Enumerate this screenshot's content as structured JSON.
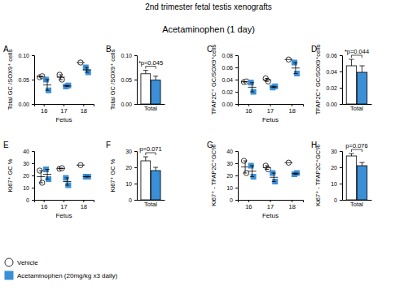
{
  "figure": {
    "title": "2nd trimester fetal testis xenografts",
    "subtitle": "Acetaminophen (1 day)"
  },
  "chart_data": [
    {
      "type": "scatter",
      "title": "A",
      "x_label": "Fetus",
      "y_label": "Total GC /SOX9⁺ cells",
      "categories": [
        "16",
        "17",
        "18"
      ],
      "ylim": [
        0,
        0.1
      ],
      "yticks": [
        {
          "value": 0,
          "label": "0.00"
        },
        {
          "value": 0.05,
          "label": "0.05"
        },
        {
          "value": 0.1,
          "label": "0.10"
        }
      ],
      "series": [
        {
          "name": "Vehicle",
          "color": "#ffffff",
          "marker": "circle",
          "values": [
            [
              0.055,
              0.057
            ],
            [
              0.06,
              0.05
            ],
            [
              0.085
            ]
          ],
          "mean": [
            0.056,
            0.055,
            0.085
          ],
          "error": [
            0.001,
            0.005,
            null
          ]
        },
        {
          "name": "Acetaminophen (20mg/kg x3 daily)",
          "color": "#3b8fd6",
          "marker": "square",
          "values": [
            [
              0.05,
              0.028
            ],
            [
              0.036,
              0.038
            ],
            [
              0.075,
              0.065
            ]
          ],
          "mean": [
            0.039,
            0.037,
            0.07
          ],
          "error": [
            0.011,
            0.001,
            0.005
          ]
        }
      ]
    },
    {
      "type": "bar",
      "title": "B",
      "y_label": "Total GC /SOX9⁺ cells",
      "categories": [
        "Total"
      ],
      "annotation": "*p=0.045",
      "ylim": [
        0,
        0.1
      ],
      "yticks": [
        {
          "value": 0,
          "label": "0.00"
        },
        {
          "value": 0.05,
          "label": "0.05"
        },
        {
          "value": 0.1,
          "label": "0.10"
        }
      ],
      "series": [
        {
          "color": "#ffffff",
          "values": [
            0.062
          ],
          "error": [
            0.007
          ]
        },
        {
          "color": "#3b8fd6",
          "values": [
            0.049
          ],
          "error": [
            0.008
          ]
        }
      ]
    },
    {
      "type": "scatter",
      "title": "C",
      "x_label": "Fetus",
      "y_label": "TFAP2C⁺ GC/SOX9⁺cells",
      "categories": [
        "16",
        "17",
        "18"
      ],
      "ylim": [
        0,
        0.08
      ],
      "yticks": [
        {
          "value": 0,
          "label": "0.00"
        },
        {
          "value": 0.02,
          "label": "0.02"
        },
        {
          "value": 0.04,
          "label": "0.04"
        },
        {
          "value": 0.06,
          "label": "0.06"
        },
        {
          "value": 0.08,
          "label": "0.08"
        }
      ],
      "series": [
        {
          "color": "#ffffff",
          "marker": "circle",
          "values": [
            [
              0.036,
              0.037
            ],
            [
              0.042,
              0.037
            ],
            [
              0.073
            ]
          ],
          "mean": [
            0.0365,
            0.0395,
            0.073
          ],
          "error": [
            0.0005,
            0.0025,
            null
          ]
        },
        {
          "color": "#3b8fd6",
          "marker": "square",
          "values": [
            [
              0.035,
              0.02
            ],
            [
              0.027,
              0.029
            ],
            [
              0.068,
              0.05
            ]
          ],
          "mean": [
            0.0275,
            0.028,
            0.059
          ],
          "error": [
            0.0075,
            0.001,
            0.009
          ]
        }
      ]
    },
    {
      "type": "bar",
      "title": "D",
      "y_label": "TFAP2C⁺ GC/SOX9⁺cells",
      "categories": [
        "Total"
      ],
      "annotation": "*p=0.044",
      "ylim": [
        0,
        0.06
      ],
      "yticks": [
        {
          "value": 0,
          "label": "0.00"
        },
        {
          "value": 0.02,
          "label": "0.02"
        },
        {
          "value": 0.04,
          "label": "0.04"
        },
        {
          "value": 0.06,
          "label": "0.06"
        }
      ],
      "series": [
        {
          "color": "#ffffff",
          "values": [
            0.047
          ],
          "error": [
            0.008
          ]
        },
        {
          "color": "#3b8fd6",
          "values": [
            0.039
          ],
          "error": [
            0.008
          ]
        }
      ]
    },
    {
      "type": "scatter",
      "title": "E",
      "x_label": "Fetus",
      "y_label": "Ki67⁺ GC %",
      "categories": [
        "16",
        "17",
        "18"
      ],
      "ylim": [
        0,
        40
      ],
      "yticks": [
        0,
        10,
        20,
        30,
        40
      ],
      "series": [
        {
          "color": "#ffffff",
          "marker": "circle",
          "values": [
            [
              24,
              14
            ],
            [
              25.5,
              26
            ],
            [
              28.5
            ]
          ],
          "mean": [
            19,
            25.75,
            28.5
          ],
          "error": [
            5,
            0.25,
            null
          ]
        },
        {
          "color": "#3b8fd6",
          "marker": "square",
          "values": [
            [
              25,
              17
            ],
            [
              18,
              12
            ],
            [
              19,
              19
            ]
          ],
          "mean": [
            21,
            15,
            19
          ],
          "error": [
            4,
            3,
            0.3
          ]
        }
      ]
    },
    {
      "type": "bar",
      "title": "F",
      "y_label": "Ki67⁺ GC %",
      "categories": [
        "Total"
      ],
      "annotation": "p=0.071",
      "ylim": [
        0,
        30
      ],
      "yticks": [
        0,
        10,
        20,
        30
      ],
      "series": [
        {
          "color": "#ffffff",
          "values": [
            24
          ],
          "error": [
            2.5
          ]
        },
        {
          "color": "#3b8fd6",
          "values": [
            18
          ],
          "error": [
            2
          ]
        }
      ]
    },
    {
      "type": "scatter",
      "title": "G",
      "x_label": "Fetus",
      "y_label": "Ki67⁺ - TFAP2C⁺GC%",
      "categories": [
        "16",
        "17",
        "18"
      ],
      "ylim": [
        0,
        40
      ],
      "yticks": [
        0,
        10,
        20,
        30,
        40
      ],
      "series": [
        {
          "color": "#ffffff",
          "marker": "circle",
          "values": [
            [
              32,
              22
            ],
            [
              28,
              25
            ],
            [
              30.5
            ]
          ],
          "mean": [
            27,
            26.5,
            30.5
          ],
          "error": [
            5,
            1.5,
            null
          ]
        },
        {
          "color": "#3b8fd6",
          "marker": "square",
          "values": [
            [
              28,
              19
            ],
            [
              22,
              15
            ],
            [
              21,
              22
            ]
          ],
          "mean": [
            23.5,
            18.5,
            21.5
          ],
          "error": [
            4.5,
            3.5,
            0.5
          ]
        }
      ]
    },
    {
      "type": "bar",
      "title": "H",
      "y_label": "Ki67⁺ - TFAP2C⁺GC%",
      "categories": [
        "Total"
      ],
      "annotation": "p=0.076",
      "ylim": [
        0,
        30
      ],
      "yticks": [
        0,
        10,
        20,
        30
      ],
      "series": [
        {
          "color": "#ffffff",
          "values": [
            27
          ],
          "error": [
            1.5
          ]
        },
        {
          "color": "#3b8fd6",
          "values": [
            21
          ],
          "error": [
            2
          ]
        }
      ]
    }
  ]
}
